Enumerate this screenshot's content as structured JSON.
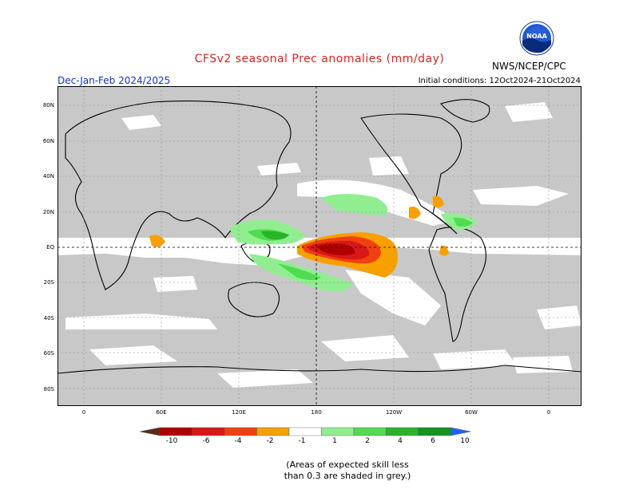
{
  "header": {
    "title": "CFSv2 seasonal Prec anomalies (mm/day)",
    "season": "Dec-Jan-Feb 2024/2025",
    "initial_conditions": "Initial conditions: 12Oct2024-21Oct2024",
    "agency": "NWS/NCEP/CPC",
    "logo_text": "NOAA"
  },
  "map": {
    "lat_labels": [
      "80N",
      "60N",
      "40N",
      "20N",
      "EQ",
      "20S",
      "40S",
      "60S",
      "80S"
    ],
    "lon_labels": [
      "0",
      "60E",
      "120E",
      "180",
      "120W",
      "60W",
      "0"
    ]
  },
  "colorbar": {
    "tick_labels": [
      "-10",
      "-6",
      "-4",
      "-2",
      "-1",
      "1",
      "2",
      "4",
      "6",
      "10"
    ],
    "colors": [
      "#5a2a1a",
      "#b00000",
      "#d81818",
      "#f04010",
      "#f8a000",
      "#ffffff",
      "#90ee90",
      "#50dc50",
      "#28b428",
      "#10961e",
      "#1e64ff"
    ]
  },
  "note": {
    "line1": "(Areas of expected skill less",
    "line2": "than 0.3 are shaded in grey.)"
  }
}
